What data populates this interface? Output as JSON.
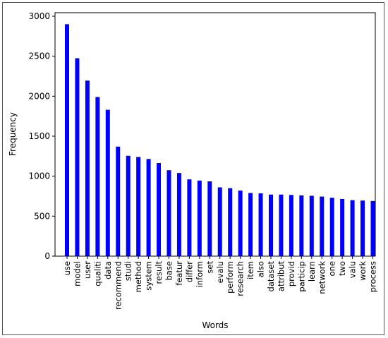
{
  "chart_data": {
    "type": "bar",
    "title": "",
    "xlabel": "Words",
    "ylabel": "Frequency",
    "ylim": [
      0,
      3000
    ],
    "yticks": [
      0,
      500,
      1000,
      1500,
      2000,
      2500,
      3000
    ],
    "grid": false,
    "bar_color": "#0000ff",
    "categories": [
      "use",
      "model",
      "user",
      "qualiti",
      "data",
      "recommend",
      "studi",
      "method",
      "system",
      "result",
      "base",
      "featur",
      "differ",
      "inform",
      "set",
      "evalu",
      "perform",
      "research",
      "item",
      "also",
      "dataset",
      "attribut",
      "provid",
      "particip",
      "learn",
      "network",
      "one",
      "two",
      "valu",
      "work",
      "process"
    ],
    "values": [
      2900,
      2475,
      2195,
      1990,
      1830,
      1370,
      1255,
      1240,
      1215,
      1165,
      1075,
      1040,
      960,
      945,
      935,
      860,
      850,
      820,
      790,
      785,
      770,
      770,
      765,
      760,
      755,
      745,
      730,
      715,
      700,
      695,
      690
    ]
  }
}
